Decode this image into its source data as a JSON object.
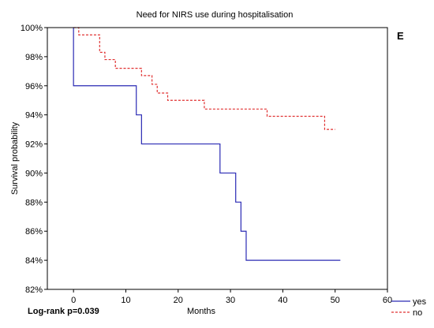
{
  "chart_data": {
    "type": "line",
    "title": "Need for NIRS use during hospitalisation",
    "xlabel": "Months",
    "ylabel": "Survival probability",
    "xlim": [
      -5,
      60
    ],
    "ylim": [
      82,
      100
    ],
    "x_ticks": [
      0,
      10,
      20,
      30,
      40,
      50,
      60
    ],
    "y_ticks": [
      82,
      84,
      86,
      88,
      90,
      92,
      94,
      96,
      98,
      100
    ],
    "y_tick_suffix": "%",
    "step": true,
    "grid": false,
    "legend_position": "bottom-right",
    "panel_letter": "E",
    "annotation": "Log-rank p=0.039",
    "series": [
      {
        "name": "yes",
        "color": "#2a2ab4",
        "dash": "solid",
        "points": [
          [
            0,
            100
          ],
          [
            0,
            96
          ],
          [
            12,
            94
          ],
          [
            13,
            92
          ],
          [
            28,
            90
          ],
          [
            31,
            88
          ],
          [
            32,
            86
          ],
          [
            33,
            84
          ],
          [
            51,
            84
          ]
        ]
      },
      {
        "name": "no",
        "color": "#e03030",
        "dash": "dashed",
        "points": [
          [
            0,
            100
          ],
          [
            1,
            99.5
          ],
          [
            5,
            98.3
          ],
          [
            6,
            97.8
          ],
          [
            8,
            97.2
          ],
          [
            13,
            96.7
          ],
          [
            15,
            96.1
          ],
          [
            16,
            95.5
          ],
          [
            18,
            95.0
          ],
          [
            25,
            94.4
          ],
          [
            37,
            93.9
          ],
          [
            48,
            93.0
          ],
          [
            50,
            93.0
          ]
        ]
      }
    ]
  }
}
